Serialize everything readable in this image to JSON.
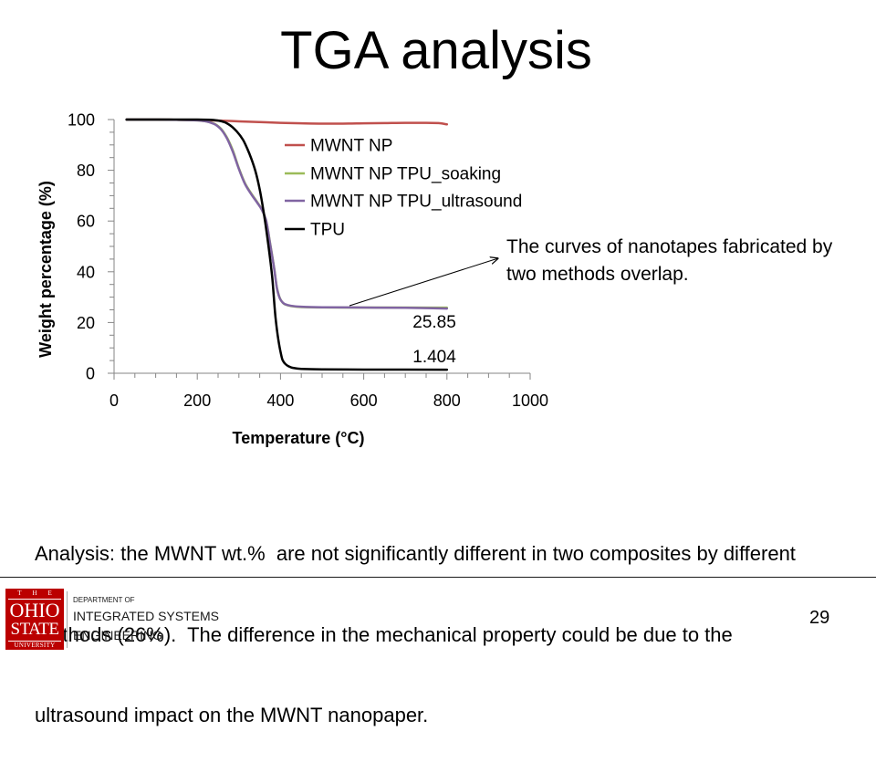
{
  "slide": {
    "title": "TGA analysis",
    "analysis_lines": [
      "Analysis: the MWNT wt.%  are not significantly different in two composites by different",
      "methods (26%).  The difference in the mechanical property could be due to the",
      "ultrasound impact on the MWNT nanopaper."
    ],
    "page_number": "29"
  },
  "footer": {
    "logo": {
      "top_text": "THE",
      "line1": "OHIO",
      "line2": "STATE",
      "bottom_text": "UNIVERSITY",
      "brand_color": "#bb0000"
    },
    "department_prefix": "DEPARTMENT OF",
    "department_line1": "INTEGRATED SYSTEMS",
    "department_line2": "ENGINEERING"
  },
  "chart_data": {
    "type": "line",
    "xlabel": "Temperature (°C)",
    "ylabel": "Weight percentage (%)",
    "xlim": [
      0,
      1000
    ],
    "ylim": [
      0,
      100
    ],
    "xticks": [
      0,
      200,
      400,
      600,
      800,
      1000
    ],
    "yticks": [
      0,
      20,
      40,
      60,
      80,
      100
    ],
    "grid": false,
    "legend_position": "right",
    "series": [
      {
        "name": "MWNT NP",
        "color": "#c0504d",
        "x": [
          30,
          100,
          150,
          200,
          250,
          300,
          350,
          400,
          450,
          500,
          550,
          600,
          650,
          700,
          750,
          780,
          800
        ],
        "y": [
          100,
          100,
          99.9,
          99.8,
          99.6,
          99.3,
          99.0,
          98.7,
          98.5,
          98.4,
          98.4,
          98.5,
          98.6,
          98.7,
          98.7,
          98.6,
          98.1
        ]
      },
      {
        "name": "MWNT NP TPU_soaking",
        "color": "#9bbb59",
        "x": [
          30,
          100,
          150,
          200,
          220,
          240,
          255,
          270,
          285,
          300,
          315,
          330,
          345,
          355,
          365,
          375,
          385,
          392,
          400,
          410,
          425,
          450,
          500,
          600,
          700,
          800
        ],
        "y": [
          100,
          100,
          99.9,
          99.7,
          99.3,
          98.4,
          96.7,
          93.3,
          88,
          80.8,
          74.8,
          70.8,
          67.2,
          64.6,
          60.4,
          51.3,
          41.2,
          33.2,
          29.1,
          27.2,
          26.5,
          26.1,
          25.95,
          25.9,
          25.9,
          25.85
        ],
        "data_label": "25.85",
        "data_label_position": "below"
      },
      {
        "name": "MWNT NP TPU_ultrasound",
        "color": "#8064a2",
        "x": [
          30,
          100,
          150,
          200,
          220,
          240,
          255,
          270,
          285,
          300,
          315,
          330,
          345,
          355,
          365,
          375,
          385,
          392,
          400,
          410,
          425,
          450,
          500,
          600,
          700,
          800
        ],
        "y": [
          100,
          100,
          99.9,
          99.7,
          99.3,
          98.3,
          96.5,
          93,
          87.5,
          80.5,
          74.5,
          70.5,
          67,
          64.5,
          60.5,
          51,
          41,
          33,
          29,
          27.3,
          26.6,
          26.2,
          26.0,
          25.9,
          25.8,
          25.5
        ]
      },
      {
        "name": "TPU",
        "color": "#000000",
        "x": [
          30,
          100,
          150,
          200,
          230,
          250,
          265,
          280,
          295,
          310,
          320,
          330,
          340,
          350,
          360,
          370,
          380,
          388,
          395,
          400,
          405,
          412,
          420,
          430,
          450,
          500,
          600,
          700,
          800
        ],
        "y": [
          100,
          100,
          100,
          100,
          99.9,
          99.6,
          99.0,
          97.6,
          95.3,
          92,
          88.6,
          84.5,
          79.5,
          72.5,
          63,
          51.5,
          38,
          22,
          13,
          8.5,
          5.2,
          3.6,
          2.7,
          2.1,
          1.7,
          1.55,
          1.45,
          1.42,
          1.404
        ],
        "data_label": "1.404",
        "data_label_position": "above"
      }
    ],
    "callout": {
      "lines": [
        "The curves of nanotapes fabricated by",
        "two methods overlap."
      ]
    }
  }
}
